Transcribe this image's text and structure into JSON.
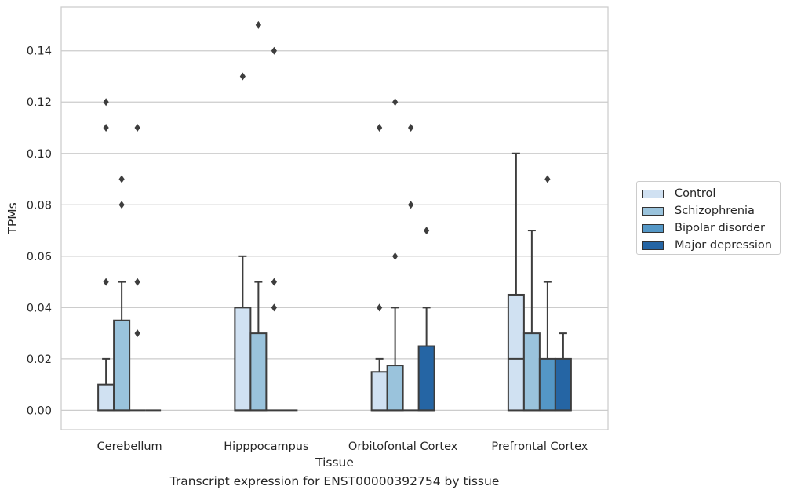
{
  "caption": "Transcript expression for ENST00000392754 by tissue",
  "chart_data": {
    "type": "box",
    "xlabel": "Tissue",
    "ylabel": "TPMs",
    "ylim": [
      -0.0075,
      0.157
    ],
    "yticks": [
      0.0,
      0.02,
      0.04,
      0.06,
      0.08,
      0.1,
      0.12,
      0.14
    ],
    "ytick_labels": [
      "0.00",
      "0.02",
      "0.04",
      "0.06",
      "0.08",
      "0.10",
      "0.12",
      "0.14"
    ],
    "grid": "horizontal",
    "legend_position": "right",
    "categories": [
      "Cerebellum",
      "Hipppocampus",
      "Orbitofontal Cortex",
      "Prefrontal Cortex"
    ],
    "series": [
      {
        "name": "Control",
        "color": "#d0e1f2",
        "boxes": [
          {
            "q1": 0.0,
            "median": 0.0,
            "q3": 0.01,
            "whisker_low": 0.0,
            "whisker_high": 0.02,
            "outliers": [
              0.05,
              0.11,
              0.12
            ]
          },
          {
            "q1": 0.0,
            "median": 0.0,
            "q3": 0.04,
            "whisker_low": 0.0,
            "whisker_high": 0.06,
            "outliers": [
              0.13
            ]
          },
          {
            "q1": 0.0,
            "median": 0.0,
            "q3": 0.015,
            "whisker_low": 0.0,
            "whisker_high": 0.02,
            "outliers": [
              0.04,
              0.11
            ]
          },
          {
            "q1": 0.0,
            "median": 0.02,
            "q3": 0.045,
            "whisker_low": 0.0,
            "whisker_high": 0.1,
            "outliers": []
          }
        ]
      },
      {
        "name": "Schizophrenia",
        "color": "#9ac3dc",
        "boxes": [
          {
            "q1": 0.0,
            "median": 0.0,
            "q3": 0.035,
            "whisker_low": 0.0,
            "whisker_high": 0.05,
            "outliers": [
              0.08,
              0.09
            ]
          },
          {
            "q1": 0.0,
            "median": 0.0,
            "q3": 0.03,
            "whisker_low": 0.0,
            "whisker_high": 0.05,
            "outliers": [
              0.15
            ]
          },
          {
            "q1": 0.0,
            "median": 0.0,
            "q3": 0.0175,
            "whisker_low": 0.0,
            "whisker_high": 0.04,
            "outliers": [
              0.06,
              0.12
            ]
          },
          {
            "q1": 0.0,
            "median": 0.0,
            "q3": 0.03,
            "whisker_low": 0.0,
            "whisker_high": 0.07,
            "outliers": []
          }
        ]
      },
      {
        "name": "Bipolar disorder",
        "color": "#5497c6",
        "boxes": [
          {
            "q1": 0.0,
            "median": 0.0,
            "q3": 0.0,
            "whisker_low": 0.0,
            "whisker_high": 0.0,
            "outliers": [
              0.03,
              0.05,
              0.11
            ]
          },
          {
            "q1": 0.0,
            "median": 0.0,
            "q3": 0.0,
            "whisker_low": 0.0,
            "whisker_high": 0.0,
            "outliers": [
              0.04,
              0.05,
              0.14
            ]
          },
          {
            "q1": 0.0,
            "median": 0.0,
            "q3": 0.0,
            "whisker_low": 0.0,
            "whisker_high": 0.0,
            "outliers": [
              0.08,
              0.11
            ]
          },
          {
            "q1": 0.0,
            "median": 0.0,
            "q3": 0.02,
            "whisker_low": 0.0,
            "whisker_high": 0.05,
            "outliers": [
              0.09
            ]
          }
        ]
      },
      {
        "name": "Major depression",
        "color": "#2565a4",
        "boxes": [
          {
            "q1": 0.0,
            "median": 0.0,
            "q3": 0.0,
            "whisker_low": 0.0,
            "whisker_high": 0.0,
            "outliers": []
          },
          {
            "q1": 0.0,
            "median": 0.0,
            "q3": 0.0,
            "whisker_low": 0.0,
            "whisker_high": 0.0,
            "outliers": []
          },
          {
            "q1": 0.0,
            "median": 0.0,
            "q3": 0.025,
            "whisker_low": 0.0,
            "whisker_high": 0.04,
            "outliers": [
              0.07
            ]
          },
          {
            "q1": 0.0,
            "median": 0.0,
            "q3": 0.02,
            "whisker_low": 0.0,
            "whisker_high": 0.03,
            "outliers": []
          }
        ]
      }
    ]
  }
}
